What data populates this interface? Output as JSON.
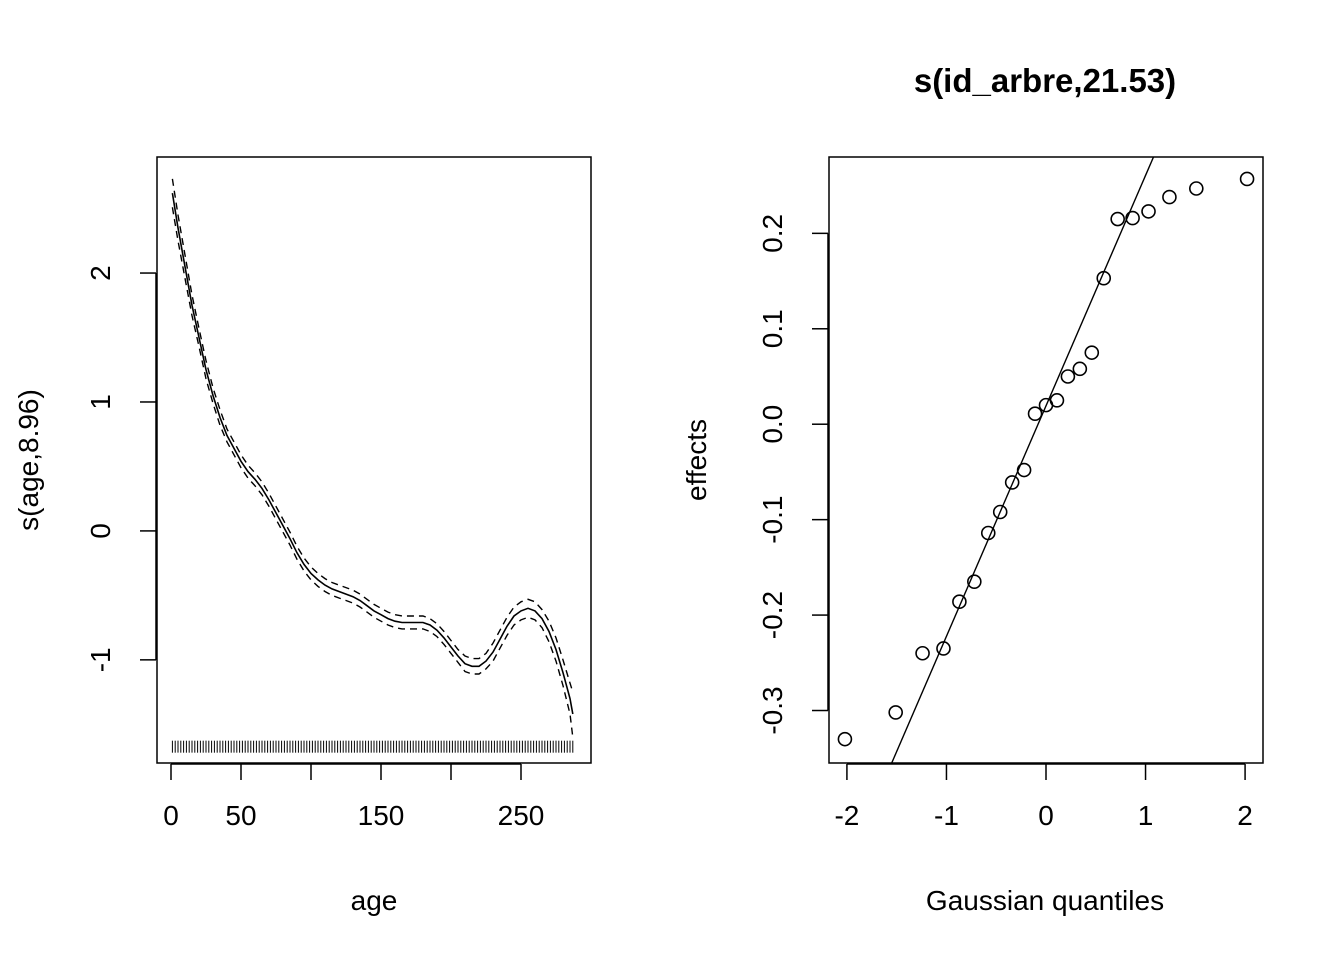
{
  "chart_data": [
    {
      "type": "line",
      "title": "",
      "xlabel": "age",
      "ylabel": "s(age,8.96)",
      "xlim": [
        -10,
        300
      ],
      "ylim": [
        -1.8,
        2.9
      ],
      "x_ticks": [
        0,
        50,
        150,
        250
      ],
      "x_tick_marks": [
        0,
        50,
        100,
        150,
        200,
        250
      ],
      "y_ticks": [
        -1,
        0,
        1,
        2
      ],
      "series": [
        {
          "role": "fit",
          "style": "solid",
          "x": [
            1,
            5,
            10,
            15,
            20,
            25,
            30,
            35,
            40,
            45,
            50,
            55,
            60,
            65,
            70,
            75,
            80,
            85,
            90,
            95,
            100,
            105,
            110,
            115,
            120,
            125,
            130,
            135,
            140,
            145,
            150,
            155,
            160,
            165,
            170,
            175,
            180,
            185,
            190,
            195,
            200,
            205,
            210,
            215,
            220,
            225,
            230,
            235,
            240,
            245,
            250,
            255,
            260,
            265,
            270,
            275,
            280,
            285,
            287
          ],
          "y": [
            2.62,
            2.35,
            2.05,
            1.75,
            1.5,
            1.25,
            1.05,
            0.88,
            0.74,
            0.64,
            0.54,
            0.46,
            0.4,
            0.33,
            0.24,
            0.14,
            0.04,
            -0.06,
            -0.17,
            -0.26,
            -0.33,
            -0.38,
            -0.42,
            -0.45,
            -0.47,
            -0.49,
            -0.51,
            -0.54,
            -0.58,
            -0.62,
            -0.65,
            -0.68,
            -0.7,
            -0.71,
            -0.71,
            -0.71,
            -0.71,
            -0.73,
            -0.77,
            -0.83,
            -0.9,
            -0.97,
            -1.03,
            -1.05,
            -1.05,
            -1.01,
            -0.94,
            -0.84,
            -0.74,
            -0.66,
            -0.62,
            -0.6,
            -0.62,
            -0.68,
            -0.78,
            -0.92,
            -1.1,
            -1.3,
            -1.42
          ]
        },
        {
          "role": "upper-se",
          "style": "dashed",
          "x": [
            1,
            5,
            10,
            15,
            20,
            25,
            30,
            35,
            40,
            45,
            50,
            55,
            60,
            65,
            70,
            75,
            80,
            85,
            90,
            95,
            100,
            105,
            110,
            115,
            120,
            125,
            130,
            135,
            140,
            145,
            150,
            155,
            160,
            165,
            170,
            175,
            180,
            185,
            190,
            195,
            200,
            205,
            210,
            215,
            220,
            225,
            230,
            235,
            240,
            245,
            250,
            255,
            260,
            265,
            270,
            275,
            280,
            285,
            287
          ],
          "y": [
            2.73,
            2.45,
            2.14,
            1.83,
            1.57,
            1.32,
            1.11,
            0.94,
            0.79,
            0.69,
            0.59,
            0.51,
            0.45,
            0.38,
            0.29,
            0.19,
            0.09,
            -0.01,
            -0.12,
            -0.21,
            -0.28,
            -0.33,
            -0.37,
            -0.4,
            -0.42,
            -0.44,
            -0.46,
            -0.49,
            -0.53,
            -0.57,
            -0.6,
            -0.63,
            -0.65,
            -0.66,
            -0.66,
            -0.66,
            -0.66,
            -0.68,
            -0.72,
            -0.78,
            -0.85,
            -0.92,
            -0.97,
            -0.99,
            -0.99,
            -0.95,
            -0.87,
            -0.77,
            -0.67,
            -0.59,
            -0.55,
            -0.53,
            -0.55,
            -0.61,
            -0.7,
            -0.83,
            -1.0,
            -1.18,
            -1.25
          ]
        },
        {
          "role": "lower-se",
          "style": "dashed",
          "x": [
            1,
            5,
            10,
            15,
            20,
            25,
            30,
            35,
            40,
            45,
            50,
            55,
            60,
            65,
            70,
            75,
            80,
            85,
            90,
            95,
            100,
            105,
            110,
            115,
            120,
            125,
            130,
            135,
            140,
            145,
            150,
            155,
            160,
            165,
            170,
            175,
            180,
            185,
            190,
            195,
            200,
            205,
            210,
            215,
            220,
            225,
            230,
            235,
            240,
            245,
            250,
            255,
            260,
            265,
            270,
            275,
            280,
            285,
            287
          ],
          "y": [
            2.51,
            2.25,
            1.96,
            1.67,
            1.43,
            1.18,
            0.99,
            0.82,
            0.69,
            0.59,
            0.49,
            0.41,
            0.35,
            0.28,
            0.19,
            0.09,
            -0.01,
            -0.11,
            -0.22,
            -0.31,
            -0.38,
            -0.43,
            -0.47,
            -0.5,
            -0.52,
            -0.54,
            -0.56,
            -0.59,
            -0.63,
            -0.67,
            -0.7,
            -0.73,
            -0.75,
            -0.76,
            -0.76,
            -0.76,
            -0.76,
            -0.78,
            -0.82,
            -0.88,
            -0.95,
            -1.02,
            -1.09,
            -1.11,
            -1.11,
            -1.07,
            -1.01,
            -0.91,
            -0.81,
            -0.73,
            -0.69,
            -0.67,
            -0.69,
            -0.75,
            -0.86,
            -1.01,
            -1.2,
            -1.42,
            -1.6
          ]
        }
      ],
      "rug": {
        "from": 1,
        "to": 287,
        "step": 2,
        "y": -1.72
      }
    },
    {
      "type": "scatter",
      "title": "s(id_arbre,21.53)",
      "xlabel": "Gaussian quantiles",
      "ylabel": "effects",
      "xlim": [
        -2.18,
        2.18
      ],
      "ylim": [
        -0.355,
        0.28
      ],
      "x_ticks": [
        -2,
        -1,
        0,
        1,
        2
      ],
      "y_ticks": [
        -0.3,
        -0.2,
        -0.1,
        0.0,
        0.1,
        0.2
      ],
      "y_tick_labels": [
        "-0.3",
        "-0.2",
        "-0.1",
        "0.0",
        "0.1",
        "0.2"
      ],
      "points": {
        "x": [
          -2.02,
          -1.51,
          -1.24,
          -1.03,
          -0.87,
          -0.72,
          -0.58,
          -0.46,
          -0.34,
          -0.22,
          -0.11,
          0.0,
          0.11,
          0.22,
          0.34,
          0.46,
          0.58,
          0.72,
          0.87,
          1.03,
          1.24,
          1.51,
          2.02
        ],
        "y": [
          -0.33,
          -0.302,
          -0.24,
          -0.235,
          -0.186,
          -0.165,
          -0.114,
          -0.092,
          -0.061,
          -0.048,
          0.011,
          0.02,
          0.025,
          0.05,
          0.058,
          0.075,
          0.153,
          0.215,
          0.216,
          0.223,
          0.238,
          0.247,
          0.257
        ]
      },
      "reference_line": {
        "x": [
          -1.55,
          1.08
        ],
        "y": [
          -0.355,
          0.28
        ]
      }
    }
  ]
}
